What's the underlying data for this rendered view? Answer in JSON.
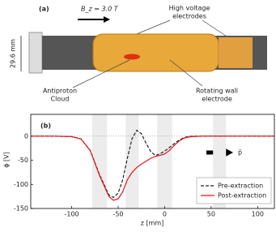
{
  "diagram": {
    "panel_label": "(a)",
    "field": "B_z = 3.0 T",
    "hv_label": [
      "High voltage",
      "electrodes"
    ],
    "diameter": "29.6 mm",
    "cloud_label": [
      "Antiproton",
      "Cloud"
    ],
    "rw_label": [
      "Rotating wall",
      "electrode"
    ]
  },
  "chart_data": {
    "type": "line",
    "panel_label": "(b)",
    "arrow_label": "p̄",
    "xlabel": "z [mm]",
    "ylabel": "ϕ [V]",
    "x": [
      -144,
      -120,
      -100,
      -90,
      -80,
      -70,
      -60,
      -55,
      -50,
      -45,
      -40,
      -35,
      -30,
      -25,
      -20,
      -15,
      -10,
      -5,
      0,
      5,
      10,
      15,
      20,
      25,
      30,
      40,
      60,
      80,
      100,
      118
    ],
    "series": [
      {
        "name": "Pre-extraction",
        "color": "#222222",
        "dash": "4 2",
        "values": [
          0,
          0,
          -1,
          -6,
          -30,
          -80,
          -122,
          -127,
          -118,
          -90,
          -45,
          -5,
          12,
          5,
          -15,
          -32,
          -40,
          -37,
          -31,
          -24,
          -16,
          -9,
          -4,
          -1,
          0,
          0,
          0,
          0,
          0,
          0
        ]
      },
      {
        "name": "Post-extraction",
        "color": "#e8141c",
        "dash": "none",
        "values": [
          0,
          0,
          -1,
          -6,
          -30,
          -82,
          -125,
          -133,
          -130,
          -115,
          -90,
          -75,
          -65,
          -58,
          -52,
          -46,
          -42,
          -40,
          -37,
          -30,
          -20,
          -11,
          -5,
          -2,
          -1,
          0,
          0,
          0,
          0,
          0
        ]
      }
    ],
    "shaded_spans": [
      [
        -78,
        -62
      ],
      [
        -42,
        -28
      ],
      [
        -8,
        8
      ],
      [
        52,
        66
      ]
    ],
    "xlim": [
      -144,
      118
    ],
    "ylim": [
      -150,
      45
    ],
    "xticks": [
      -100,
      -50,
      0,
      50,
      100
    ],
    "yticks": [
      -150,
      -100,
      -50,
      0
    ],
    "legend": "lower right"
  }
}
